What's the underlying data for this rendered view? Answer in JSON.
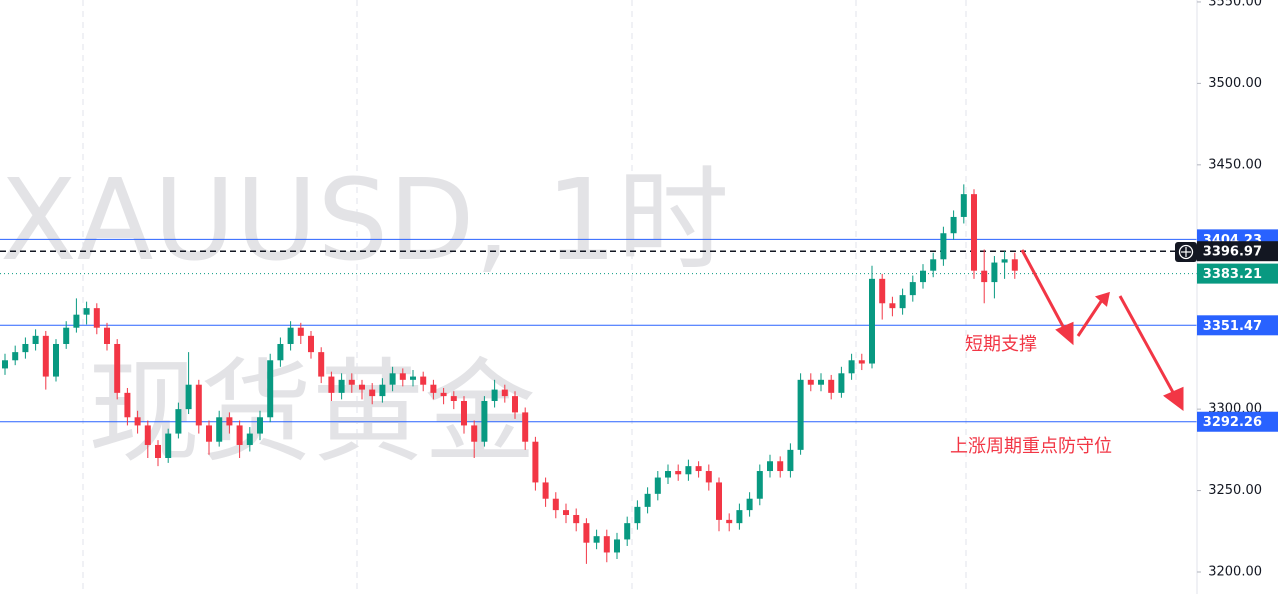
{
  "chart_data": {
    "type": "candlestick",
    "watermark_title": "XAUUSD, 1时",
    "watermark_subtitle": "现货黄金",
    "annotations": [
      "短期支撑",
      "上涨周期重点防守位"
    ],
    "up_color": "#089981",
    "down_color": "#f23645",
    "ylim": [
      3186.5,
      3551.2
    ],
    "yticks": [
      {
        "value": 3550,
        "label": "3550.00"
      },
      {
        "value": 3500,
        "label": "3500.00"
      },
      {
        "value": 3450,
        "label": "3450.00"
      },
      {
        "value": 3300,
        "label": "3300.00"
      },
      {
        "value": 3250,
        "label": "3250.00"
      },
      {
        "value": 3200,
        "label": "3200.00"
      }
    ],
    "price_lines": [
      {
        "value": 3404.23,
        "color": "#2962ff",
        "style": "solid"
      },
      {
        "value": 3396.97,
        "color": "#131722",
        "style": "dashed"
      },
      {
        "value": 3383.21,
        "color": "#089981",
        "style": "dotted"
      },
      {
        "value": 3351.47,
        "color": "#2962ff",
        "style": "solid"
      },
      {
        "value": 3292.26,
        "color": "#2962ff",
        "style": "solid"
      }
    ],
    "open": [
      3325,
      3330,
      3335,
      3340,
      3345,
      3320,
      3340,
      3350,
      3358,
      3362,
      3350,
      3340,
      3310,
      3295,
      3290,
      3278,
      3270,
      3285,
      3300,
      3315,
      3290,
      3280,
      3295,
      3290,
      3278,
      3285,
      3295,
      3330,
      3340,
      3350,
      3345,
      3335,
      3320,
      3310,
      3318,
      3315,
      3312,
      3308,
      3315,
      3322,
      3318,
      3320,
      3315,
      3310,
      3308,
      3305,
      3290,
      3280,
      3305,
      3312,
      3308,
      3298,
      3280,
      3255,
      3245,
      3238,
      3235,
      3230,
      3218,
      3222,
      3212,
      3220,
      3230,
      3240,
      3248,
      3258,
      3262,
      3260,
      3265,
      3262,
      3255,
      3232,
      3230,
      3238,
      3245,
      3262,
      3268,
      3262,
      3275,
      3318,
      3315,
      3318,
      3310,
      3322,
      3330,
      3328,
      3380,
      3365,
      3362,
      3370,
      3378,
      3385,
      3392,
      3408,
      3418,
      3432,
      3385,
      3378,
      3390,
      3392
    ],
    "high": [
      3334,
      3339,
      3344,
      3349,
      3348,
      3343,
      3354,
      3368,
      3366,
      3365,
      3353,
      3343,
      3313,
      3299,
      3293,
      3281,
      3288,
      3304,
      3335,
      3318,
      3293,
      3299,
      3298,
      3293,
      3289,
      3299,
      3334,
      3344,
      3354,
      3353,
      3348,
      3338,
      3323,
      3322,
      3322,
      3318,
      3316,
      3319,
      3326,
      3325,
      3324,
      3323,
      3318,
      3313,
      3311,
      3308,
      3293,
      3308,
      3318,
      3315,
      3311,
      3301,
      3283,
      3258,
      3249,
      3242,
      3239,
      3233,
      3226,
      3226,
      3224,
      3234,
      3244,
      3252,
      3262,
      3266,
      3266,
      3269,
      3268,
      3266,
      3258,
      3236,
      3242,
      3249,
      3266,
      3272,
      3271,
      3279,
      3322,
      3322,
      3322,
      3321,
      3326,
      3334,
      3334,
      3388,
      3383,
      3369,
      3374,
      3382,
      3389,
      3396,
      3412,
      3422,
      3438,
      3435,
      3398,
      3394,
      3397,
      3396
    ],
    "low": [
      3321,
      3327,
      3331,
      3336,
      3312,
      3317,
      3337,
      3347,
      3352,
      3346,
      3336,
      3306,
      3290,
      3285,
      3270,
      3265,
      3267,
      3282,
      3297,
      3285,
      3272,
      3277,
      3285,
      3270,
      3274,
      3281,
      3292,
      3326,
      3336,
      3340,
      3331,
      3316,
      3305,
      3306,
      3310,
      3306,
      3303,
      3304,
      3311,
      3314,
      3314,
      3311,
      3306,
      3303,
      3300,
      3285,
      3270,
      3277,
      3301,
      3304,
      3294,
      3275,
      3250,
      3240,
      3233,
      3230,
      3225,
      3205,
      3214,
      3206,
      3208,
      3216,
      3226,
      3236,
      3244,
      3254,
      3256,
      3256,
      3258,
      3250,
      3225,
      3225,
      3226,
      3234,
      3241,
      3258,
      3258,
      3258,
      3272,
      3311,
      3311,
      3306,
      3307,
      3318,
      3324,
      3325,
      3355,
      3357,
      3358,
      3366,
      3374,
      3381,
      3388,
      3404,
      3414,
      3380,
      3365,
      3368,
      3380,
      3380
    ],
    "close": [
      3330,
      3335,
      3340,
      3345,
      3320,
      3340,
      3350,
      3358,
      3362,
      3350,
      3340,
      3310,
      3295,
      3290,
      3278,
      3270,
      3285,
      3300,
      3315,
      3290,
      3280,
      3295,
      3290,
      3278,
      3285,
      3295,
      3330,
      3340,
      3350,
      3345,
      3335,
      3320,
      3310,
      3318,
      3315,
      3312,
      3308,
      3315,
      3322,
      3318,
      3320,
      3315,
      3310,
      3308,
      3305,
      3290,
      3280,
      3305,
      3312,
      3308,
      3298,
      3280,
      3255,
      3245,
      3238,
      3235,
      3230,
      3218,
      3222,
      3212,
      3220,
      3230,
      3240,
      3248,
      3258,
      3262,
      3260,
      3265,
      3262,
      3255,
      3232,
      3230,
      3238,
      3245,
      3262,
      3268,
      3262,
      3275,
      3318,
      3315,
      3318,
      3310,
      3322,
      3330,
      3328,
      3380,
      3365,
      3362,
      3370,
      3378,
      3385,
      3392,
      3408,
      3418,
      3432,
      3385,
      3378,
      3390,
      3392,
      3385
    ]
  }
}
